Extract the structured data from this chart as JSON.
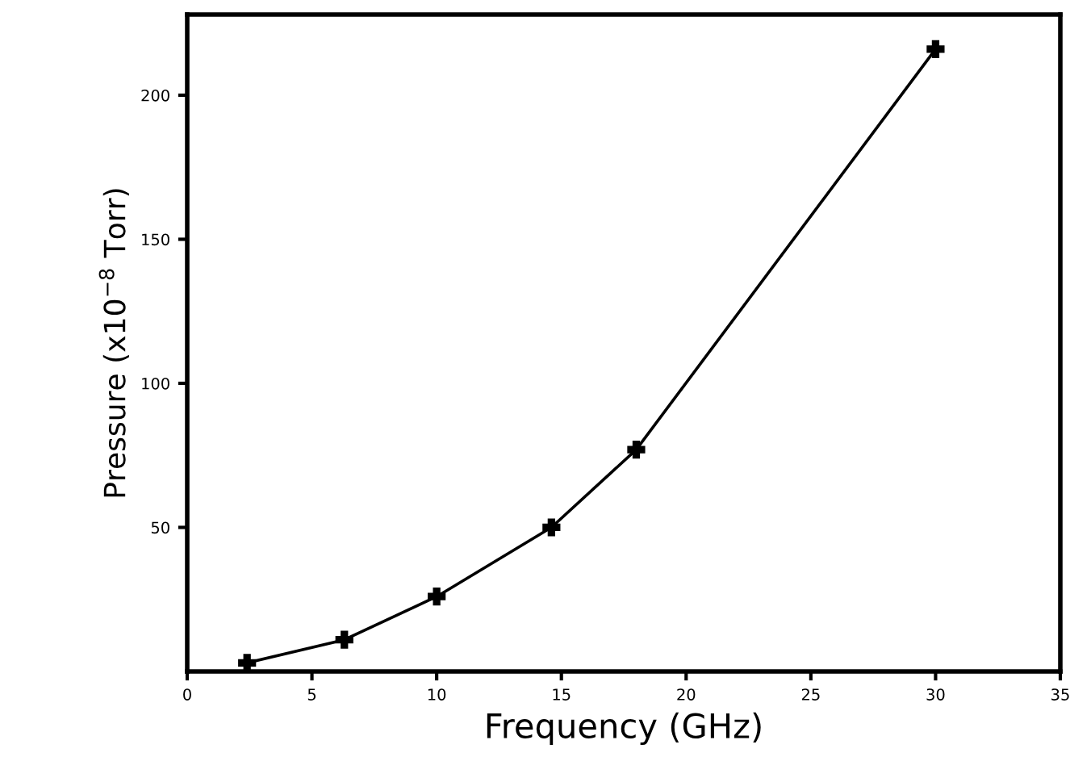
{
  "chart_data": {
    "type": "line",
    "xlabel": "Frequency (GHz)",
    "ylabel": "Pressure (x10$^{−8}$ Torr)",
    "x": [
      2.4,
      6.3,
      10,
      14.6,
      18,
      30
    ],
    "series": [
      {
        "color": "#000000",
        "values": [
          3,
          11,
          26,
          50,
          77,
          216
        ]
      }
    ],
    "marker": "cross",
    "line_style": "solid",
    "grid": false,
    "legend": false,
    "xlim": [
      0,
      35
    ],
    "xticks": [
      0,
      5,
      10,
      15,
      20,
      25,
      30,
      35
    ],
    "ylim": [
      0,
      228
    ],
    "yticks": [
      50,
      100,
      150,
      200
    ]
  }
}
